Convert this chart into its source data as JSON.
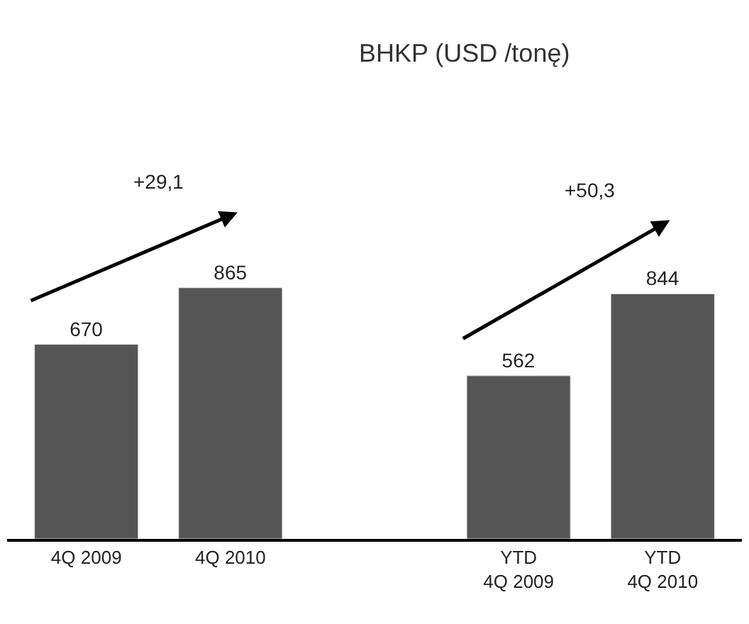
{
  "chart_data": {
    "type": "bar",
    "title": "BHKP (USD /tonę)",
    "categories": [
      "4Q 2009",
      "4Q 2010",
      null,
      "YTD\n4Q 2009",
      "YTD\n4Q 2010"
    ],
    "values": [
      670,
      865,
      null,
      562,
      844
    ],
    "color": "#555555",
    "data_labels": true,
    "legend": false,
    "annotations": [
      "+29,1",
      "+50,3"
    ]
  }
}
